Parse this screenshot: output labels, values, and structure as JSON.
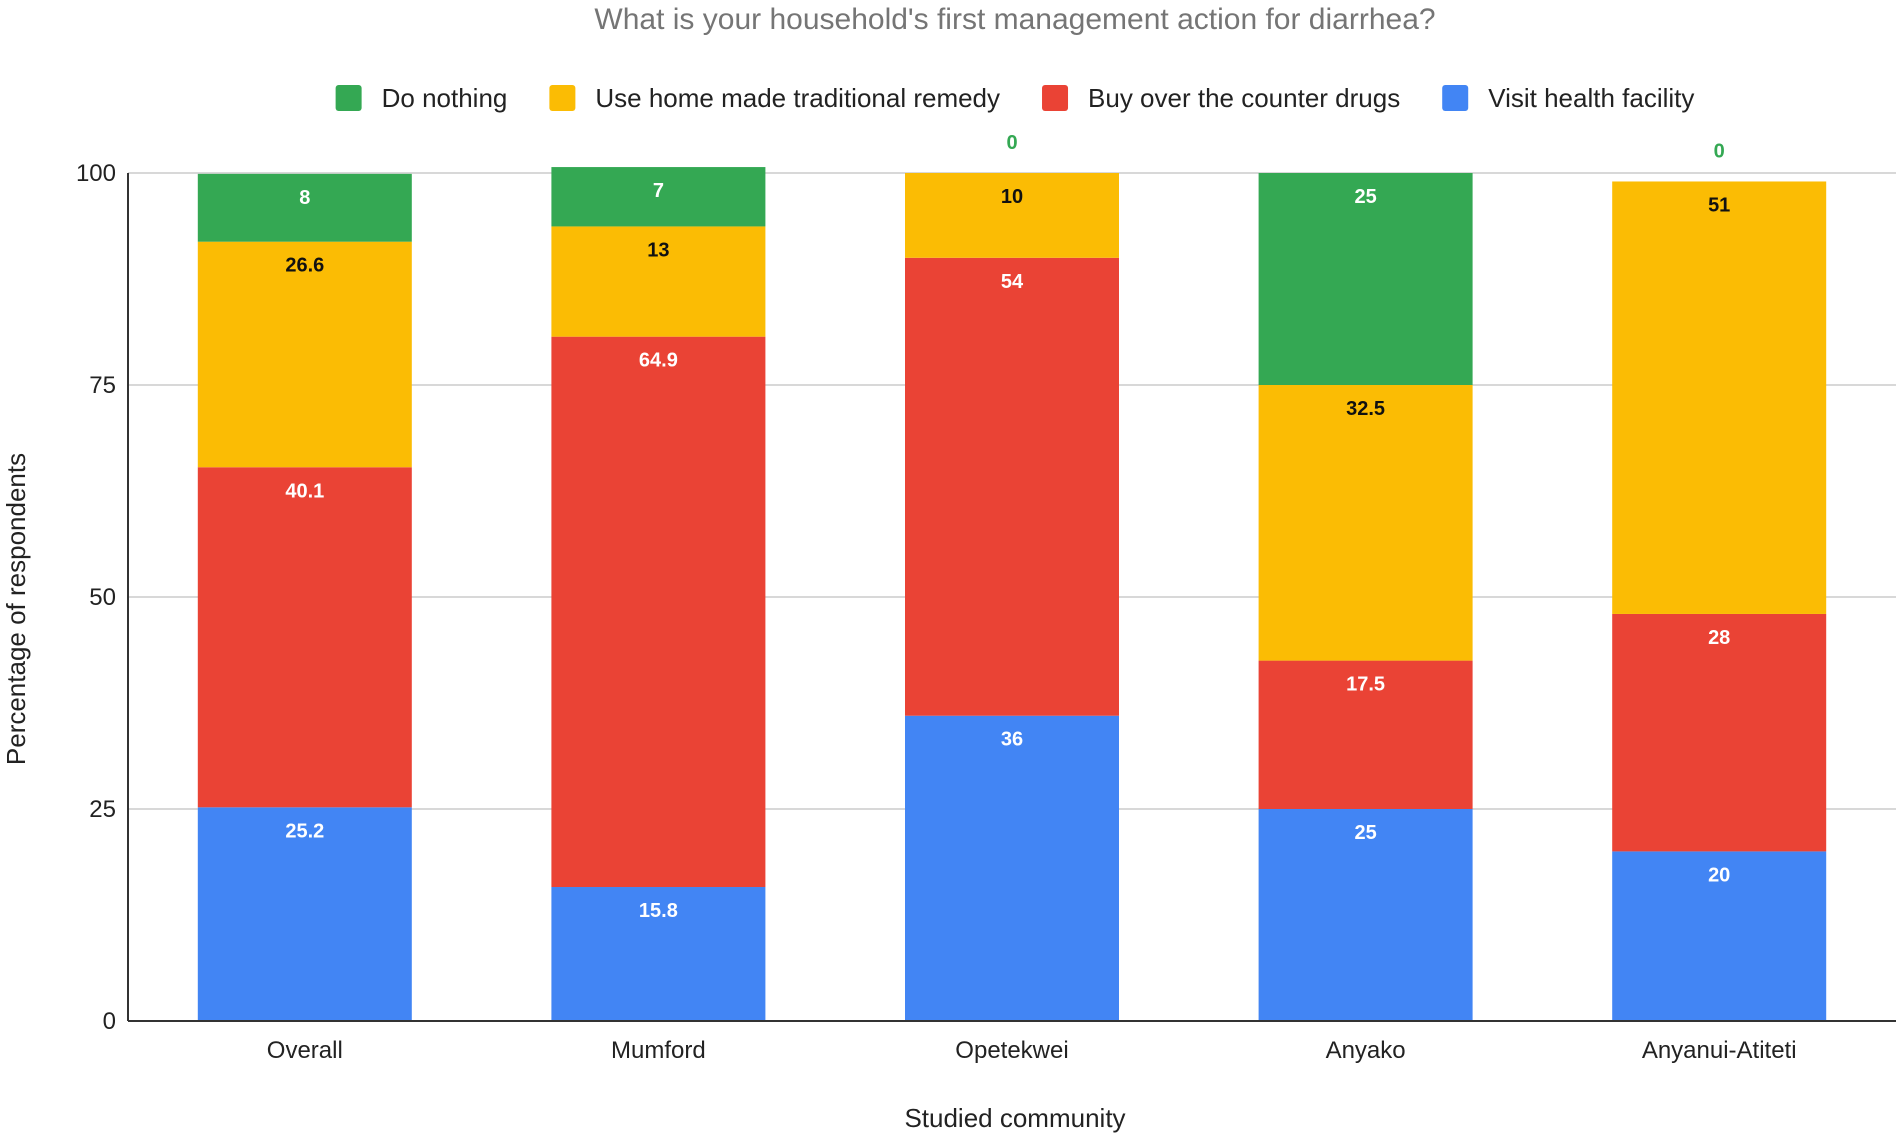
{
  "chart_data": {
    "type": "bar",
    "stacked": true,
    "title": "What is your household's first management action for diarrhea?",
    "xlabel": "Studied community",
    "ylabel": "Percentage of respondents",
    "ylim": [
      0,
      100
    ],
    "yticks": [
      0,
      25,
      50,
      75,
      100
    ],
    "grid": true,
    "legend_position": "top",
    "categories": [
      "Overall",
      "Mumford",
      "Opetekwei",
      "Anyako",
      "Anyanui-Atiteti"
    ],
    "series": [
      {
        "name": "Visit health facility",
        "color": "#4285f4",
        "label_color": "#ffffff",
        "values": [
          25.2,
          15.8,
          36,
          25,
          20
        ],
        "labels": [
          "25.2",
          "15.8",
          "36",
          "25",
          "20"
        ]
      },
      {
        "name": "Buy over the counter drugs",
        "color": "#ea4335",
        "label_color": "#ffffff",
        "values": [
          40.1,
          64.9,
          54,
          17.5,
          28
        ],
        "labels": [
          "40.1",
          "64.9",
          "54",
          "17.5",
          "28"
        ]
      },
      {
        "name": "Use home made traditional remedy",
        "color": "#fbbc04",
        "label_color": "#111111",
        "values": [
          26.6,
          13,
          10,
          32.5,
          51
        ],
        "labels": [
          "26.6",
          "13",
          "10",
          "32.5",
          "51"
        ]
      },
      {
        "name": "Do nothing",
        "color": "#34a853",
        "label_color": "#ffffff",
        "zero_label_color": "#34a853",
        "values": [
          8,
          7,
          0,
          25,
          0
        ],
        "labels": [
          "8",
          "7",
          "0",
          "25",
          "0"
        ]
      }
    ],
    "legend_order": [
      "Do nothing",
      "Use home made traditional remedy",
      "Buy over the counter drugs",
      "Visit health facility"
    ]
  }
}
